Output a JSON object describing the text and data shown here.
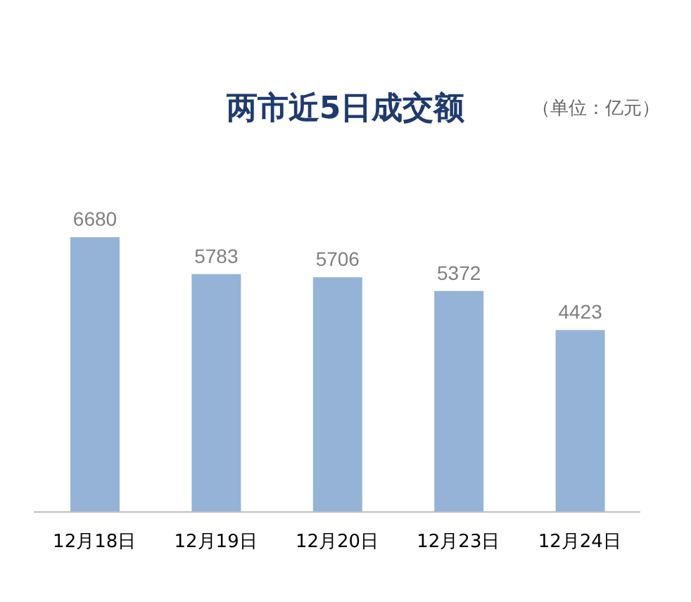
{
  "chart_data": {
    "type": "bar",
    "title": "两市近5日成交额",
    "annotations": [
      "（单位：亿元）"
    ],
    "categories": [
      "12月18日",
      "12月19日",
      "12月20日",
      "12月23日",
      "12月24日"
    ],
    "values": [
      6680,
      5783,
      5706,
      5372,
      4423
    ],
    "color": "#95b3d7",
    "data_labels": true
  }
}
